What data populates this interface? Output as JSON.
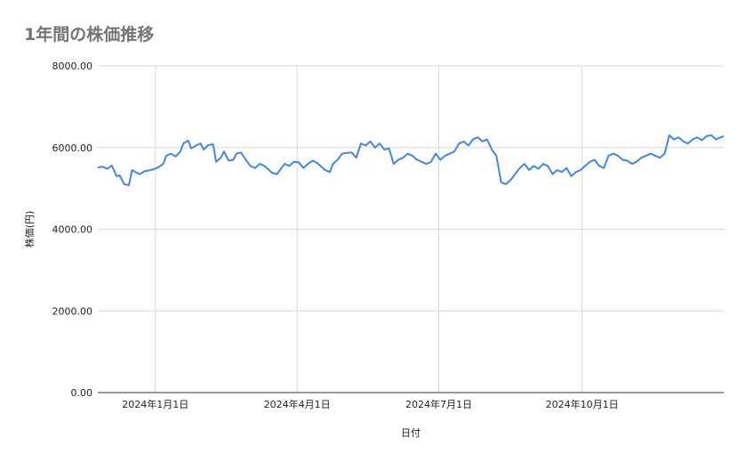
{
  "chart_data": {
    "type": "line",
    "title": "1年間の株価推移",
    "xlabel": "日付",
    "ylabel": "株価(円)",
    "ylim": [
      0,
      8000
    ],
    "y_ticks": [
      "0.00",
      "2000.00",
      "4000.00",
      "6000.00",
      "8000.00"
    ],
    "x_ticks": [
      {
        "date": "2024-01-01",
        "label": "2024年1月1日"
      },
      {
        "date": "2024-04-01",
        "label": "2024年4月1日"
      },
      {
        "date": "2024-07-01",
        "label": "2024年7月1日"
      },
      {
        "date": "2024-10-01",
        "label": "2024年10月1日"
      }
    ],
    "xlim": [
      "2023-11-25",
      "2024-12-31"
    ],
    "grid": true,
    "line_color": "#4a86d0",
    "series": [
      {
        "x": [
          "2023-11-25",
          "2023-11-28",
          "2023-12-01",
          "2023-12-04",
          "2023-12-07",
          "2023-12-09",
          "2023-12-12",
          "2023-12-15",
          "2023-12-17",
          "2023-12-20",
          "2023-12-22",
          "2023-12-25",
          "2023-12-28",
          "2023-12-31",
          "2024-01-03",
          "2024-01-06",
          "2024-01-08",
          "2024-01-11",
          "2024-01-14",
          "2024-01-17",
          "2024-01-19",
          "2024-01-22",
          "2024-01-24",
          "2024-01-27",
          "2024-01-30",
          "2024-02-01",
          "2024-02-04",
          "2024-02-07",
          "2024-02-09",
          "2024-02-12",
          "2024-02-14",
          "2024-02-17",
          "2024-02-20",
          "2024-02-22",
          "2024-02-25",
          "2024-02-28",
          "2024-03-02",
          "2024-03-05",
          "2024-03-08",
          "2024-03-11",
          "2024-03-14",
          "2024-03-16",
          "2024-03-19",
          "2024-03-22",
          "2024-03-24",
          "2024-03-27",
          "2024-03-30",
          "2024-04-02",
          "2024-04-05",
          "2024-04-08",
          "2024-04-11",
          "2024-04-14",
          "2024-04-16",
          "2024-04-19",
          "2024-04-22",
          "2024-04-24",
          "2024-04-27",
          "2024-04-30",
          "2024-05-03",
          "2024-05-06",
          "2024-05-09",
          "2024-05-12",
          "2024-05-15",
          "2024-05-18",
          "2024-05-21",
          "2024-05-24",
          "2024-05-27",
          "2024-05-30",
          "2024-06-02",
          "2024-06-05",
          "2024-06-08",
          "2024-06-11",
          "2024-06-14",
          "2024-06-17",
          "2024-06-20",
          "2024-06-23",
          "2024-06-26",
          "2024-06-29",
          "2024-07-02",
          "2024-07-05",
          "2024-07-08",
          "2024-07-11",
          "2024-07-14",
          "2024-07-17",
          "2024-07-20",
          "2024-07-23",
          "2024-07-26",
          "2024-07-29",
          "2024-08-01",
          "2024-08-04",
          "2024-08-07",
          "2024-08-10",
          "2024-08-13",
          "2024-08-16",
          "2024-08-19",
          "2024-08-22",
          "2024-08-25",
          "2024-08-28",
          "2024-08-31",
          "2024-09-03",
          "2024-09-06",
          "2024-09-09",
          "2024-09-12",
          "2024-09-15",
          "2024-09-18",
          "2024-09-21",
          "2024-09-24",
          "2024-09-27",
          "2024-09-30",
          "2024-10-03",
          "2024-10-06",
          "2024-10-09",
          "2024-10-12",
          "2024-10-15",
          "2024-10-18",
          "2024-10-21",
          "2024-10-24",
          "2024-10-27",
          "2024-10-30",
          "2024-11-02",
          "2024-11-05",
          "2024-11-08",
          "2024-11-11",
          "2024-11-14",
          "2024-11-17",
          "2024-11-20",
          "2024-11-23",
          "2024-11-26",
          "2024-11-29",
          "2024-12-02",
          "2024-12-05",
          "2024-12-08",
          "2024-12-11",
          "2024-12-14",
          "2024-12-17",
          "2024-12-20",
          "2024-12-23",
          "2024-12-26",
          "2024-12-29",
          "2024-12-31"
        ],
        "y": [
          5510,
          5530,
          5480,
          5560,
          5300,
          5320,
          5100,
          5080,
          5450,
          5380,
          5350,
          5420,
          5440,
          5470,
          5520,
          5600,
          5800,
          5850,
          5780,
          5900,
          6100,
          6170,
          5980,
          6050,
          6100,
          5950,
          6060,
          6080,
          5650,
          5750,
          5900,
          5680,
          5700,
          5850,
          5880,
          5700,
          5550,
          5500,
          5600,
          5550,
          5450,
          5380,
          5350,
          5500,
          5600,
          5550,
          5650,
          5640,
          5500,
          5600,
          5680,
          5620,
          5550,
          5450,
          5400,
          5600,
          5700,
          5850,
          5870,
          5880,
          5750,
          6100,
          6050,
          6150,
          6000,
          6100,
          5950,
          5980,
          5600,
          5700,
          5750,
          5850,
          5800,
          5700,
          5650,
          5600,
          5650,
          5850,
          5700,
          5800,
          5850,
          5900,
          6100,
          6150,
          6050,
          6200,
          6250,
          6150,
          6200,
          5950,
          5800,
          5150,
          5100,
          5200,
          5350,
          5500,
          5600,
          5450,
          5550,
          5480,
          5600,
          5550,
          5350,
          5450,
          5400,
          5500,
          5300,
          5400,
          5450,
          5550,
          5650,
          5700,
          5550,
          5500,
          5800,
          5850,
          5800,
          5700,
          5680,
          5600,
          5650,
          5750,
          5800,
          5850,
          5800,
          5750,
          5850,
          6300,
          6200,
          6250,
          6150,
          6100,
          6200,
          6250,
          6180,
          6280,
          6300,
          6200,
          6250,
          6280
        ]
      }
    ]
  }
}
